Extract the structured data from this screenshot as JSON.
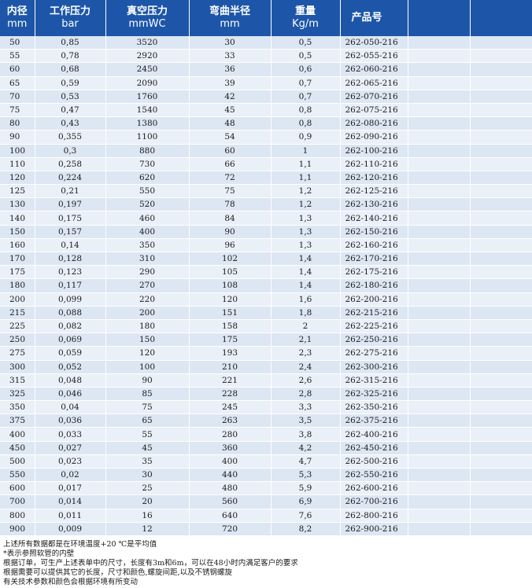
{
  "table": {
    "headers": [
      {
        "title": "内径",
        "unit": "mm"
      },
      {
        "title": "工作压力",
        "unit": "bar"
      },
      {
        "title": "真空压力",
        "unit": "mmWC"
      },
      {
        "title": "弯曲半径",
        "unit": "mm"
      },
      {
        "title": "重量",
        "unit": "Kg/m"
      },
      {
        "title": "产品号",
        "unit": ""
      },
      {
        "title": "",
        "unit": ""
      },
      {
        "title": "",
        "unit": ""
      }
    ],
    "rows": [
      [
        "50",
        "0,85",
        "3520",
        "30",
        "0,5",
        "262-050-216"
      ],
      [
        "55",
        "0,78",
        "2920",
        "33",
        "0,5",
        "262-055-216"
      ],
      [
        "60",
        "0,68",
        "2450",
        "36",
        "0,6",
        "262-060-216"
      ],
      [
        "65",
        "0,59",
        "2090",
        "39",
        "0,7",
        "262-065-216"
      ],
      [
        "70",
        "0,53",
        "1760",
        "42",
        "0,7",
        "262-070-216"
      ],
      [
        "75",
        "0,47",
        "1540",
        "45",
        "0,8",
        "262-075-216"
      ],
      [
        "80",
        "0,43",
        "1380",
        "48",
        "0,8",
        "262-080-216"
      ],
      [
        "90",
        "0,355",
        "1100",
        "54",
        "0,9",
        "262-090-216"
      ],
      [
        "100",
        "0,3",
        "880",
        "60",
        "1",
        "262-100-216"
      ],
      [
        "110",
        "0,258",
        "730",
        "66",
        "1,1",
        "262-110-216"
      ],
      [
        "120",
        "0,224",
        "620",
        "72",
        "1,1",
        "262-120-216"
      ],
      [
        "125",
        "0,21",
        "550",
        "75",
        "1,2",
        "262-125-216"
      ],
      [
        "130",
        "0,197",
        "520",
        "78",
        "1,2",
        "262-130-216"
      ],
      [
        "140",
        "0,175",
        "460",
        "84",
        "1,3",
        "262-140-216"
      ],
      [
        "150",
        "0,157",
        "400",
        "90",
        "1,3",
        "262-150-216"
      ],
      [
        "160",
        "0,14",
        "350",
        "96",
        "1,3",
        "262-160-216"
      ],
      [
        "170",
        "0,128",
        "310",
        "102",
        "1,4",
        "262-170-216"
      ],
      [
        "175",
        "0,123",
        "290",
        "105",
        "1,4",
        "262-175-216"
      ],
      [
        "180",
        "0,117",
        "270",
        "108",
        "1,4",
        "262-180-216"
      ],
      [
        "200",
        "0,099",
        "220",
        "120",
        "1,6",
        "262-200-216"
      ],
      [
        "215",
        "0,088",
        "200",
        "151",
        "1,8",
        "262-215-216"
      ],
      [
        "225",
        "0,082",
        "180",
        "158",
        "2",
        "262-225-216"
      ],
      [
        "250",
        "0,069",
        "150",
        "175",
        "2,1",
        "262-250-216"
      ],
      [
        "275",
        "0,059",
        "120",
        "193",
        "2,3",
        "262-275-216"
      ],
      [
        "300",
        "0,052",
        "100",
        "210",
        "2,4",
        "262-300-216"
      ],
      [
        "315",
        "0,048",
        "90",
        "221",
        "2,6",
        "262-315-216"
      ],
      [
        "325",
        "0,046",
        "85",
        "228",
        "2,8",
        "262-325-216"
      ],
      [
        "350",
        "0,04",
        "75",
        "245",
        "3,3",
        "262-350-216"
      ],
      [
        "375",
        "0,036",
        "65",
        "263",
        "3,5",
        "262-375-216"
      ],
      [
        "400",
        "0,033",
        "55",
        "280",
        "3,8",
        "262-400-216"
      ],
      [
        "450",
        "0,027",
        "45",
        "360",
        "4,2",
        "262-450-216"
      ],
      [
        "500",
        "0,023",
        "35",
        "400",
        "4,7",
        "262-500-216"
      ],
      [
        "550",
        "0,02",
        "30",
        "440",
        "5,3",
        "262-550-216"
      ],
      [
        "600",
        "0,017",
        "25",
        "480",
        "5,9",
        "262-600-216"
      ],
      [
        "700",
        "0,014",
        "20",
        "560",
        "6,9",
        "262-700-216"
      ],
      [
        "800",
        "0,011",
        "16",
        "640",
        "7,6",
        "262-800-216"
      ],
      [
        "900",
        "0,009",
        "12",
        "720",
        "8,2",
        "262-900-216"
      ]
    ]
  },
  "notes": [
    "上述所有数据都是在环境温度+20 ℃是平均值",
    "*表示参照软管的内壁",
    "根据订单，可生产上述表单中的尺寸，长度有3m和6m，可以在48小时内满足客户的要求",
    "根据需要可以提供其它的长度，尺寸和颜色,螺旋间距,以及不锈钢螺旋",
    "有关技术参数和颜色会根据环境有所变动"
  ],
  "colors": {
    "header_bg": "#1d56a8",
    "row_odd": "#dde6f3",
    "row_even": "#eaf0f8"
  }
}
